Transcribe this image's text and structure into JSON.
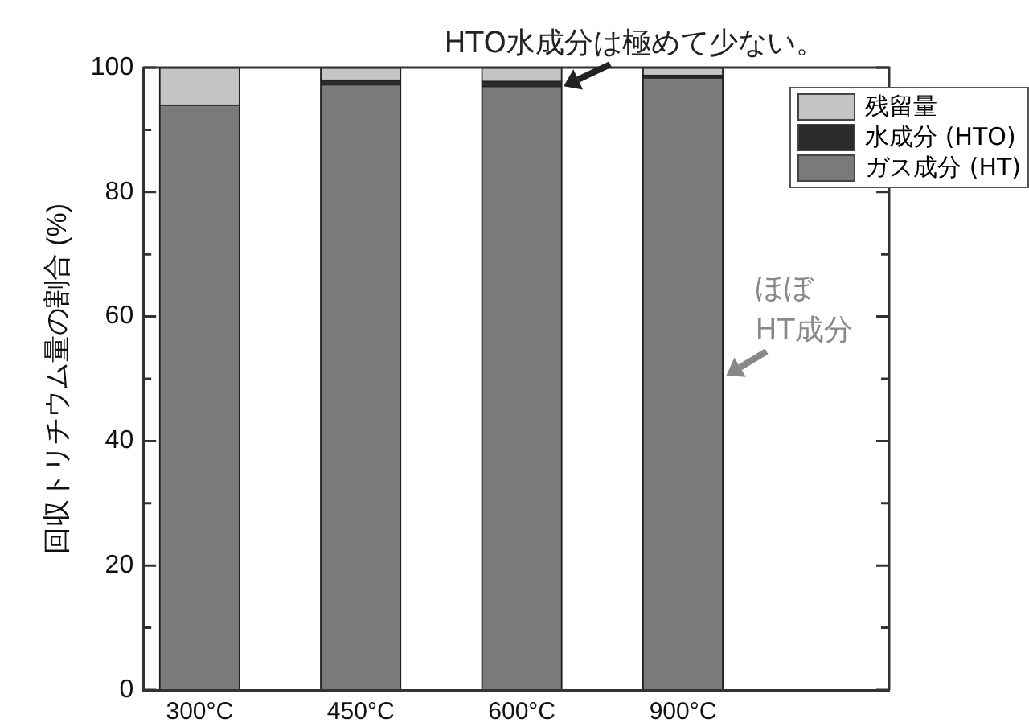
{
  "chart_data": {
    "type": "bar",
    "stacked": true,
    "ylabel": "回収トリチウム量の割合 (%)",
    "categories": [
      "300°C",
      "450°C",
      "600°C",
      "900°C"
    ],
    "series": [
      {
        "name": "ガス成分 (HT)",
        "color": "#7a7a7a",
        "values": [
          94,
          97.3,
          97,
          98.4
        ]
      },
      {
        "name": "水成分 (HTO)",
        "color": "#2b2b2b",
        "values": [
          0,
          0.7,
          0.8,
          0.4
        ]
      },
      {
        "name": "残留量",
        "color": "#c4c4c4",
        "values": [
          6,
          2,
          2.2,
          1.2
        ]
      }
    ],
    "ylim": [
      0,
      100
    ],
    "yticks": [
      0,
      {
        "value": 10,
        "label": null
      },
      20,
      {
        "value": 30,
        "label": null
      },
      40,
      {
        "value": 50,
        "label": null
      },
      60,
      {
        "value": 70,
        "label": null
      },
      80,
      {
        "value": 90,
        "label": null
      },
      100
    ],
    "grid": false,
    "legend": "top right",
    "annotations": [
      {
        "text": "HTO水成分は極めて少ない。",
        "x": "600°C",
        "y": 97.5
      },
      "ほぼ\nHT成分"
    ]
  }
}
